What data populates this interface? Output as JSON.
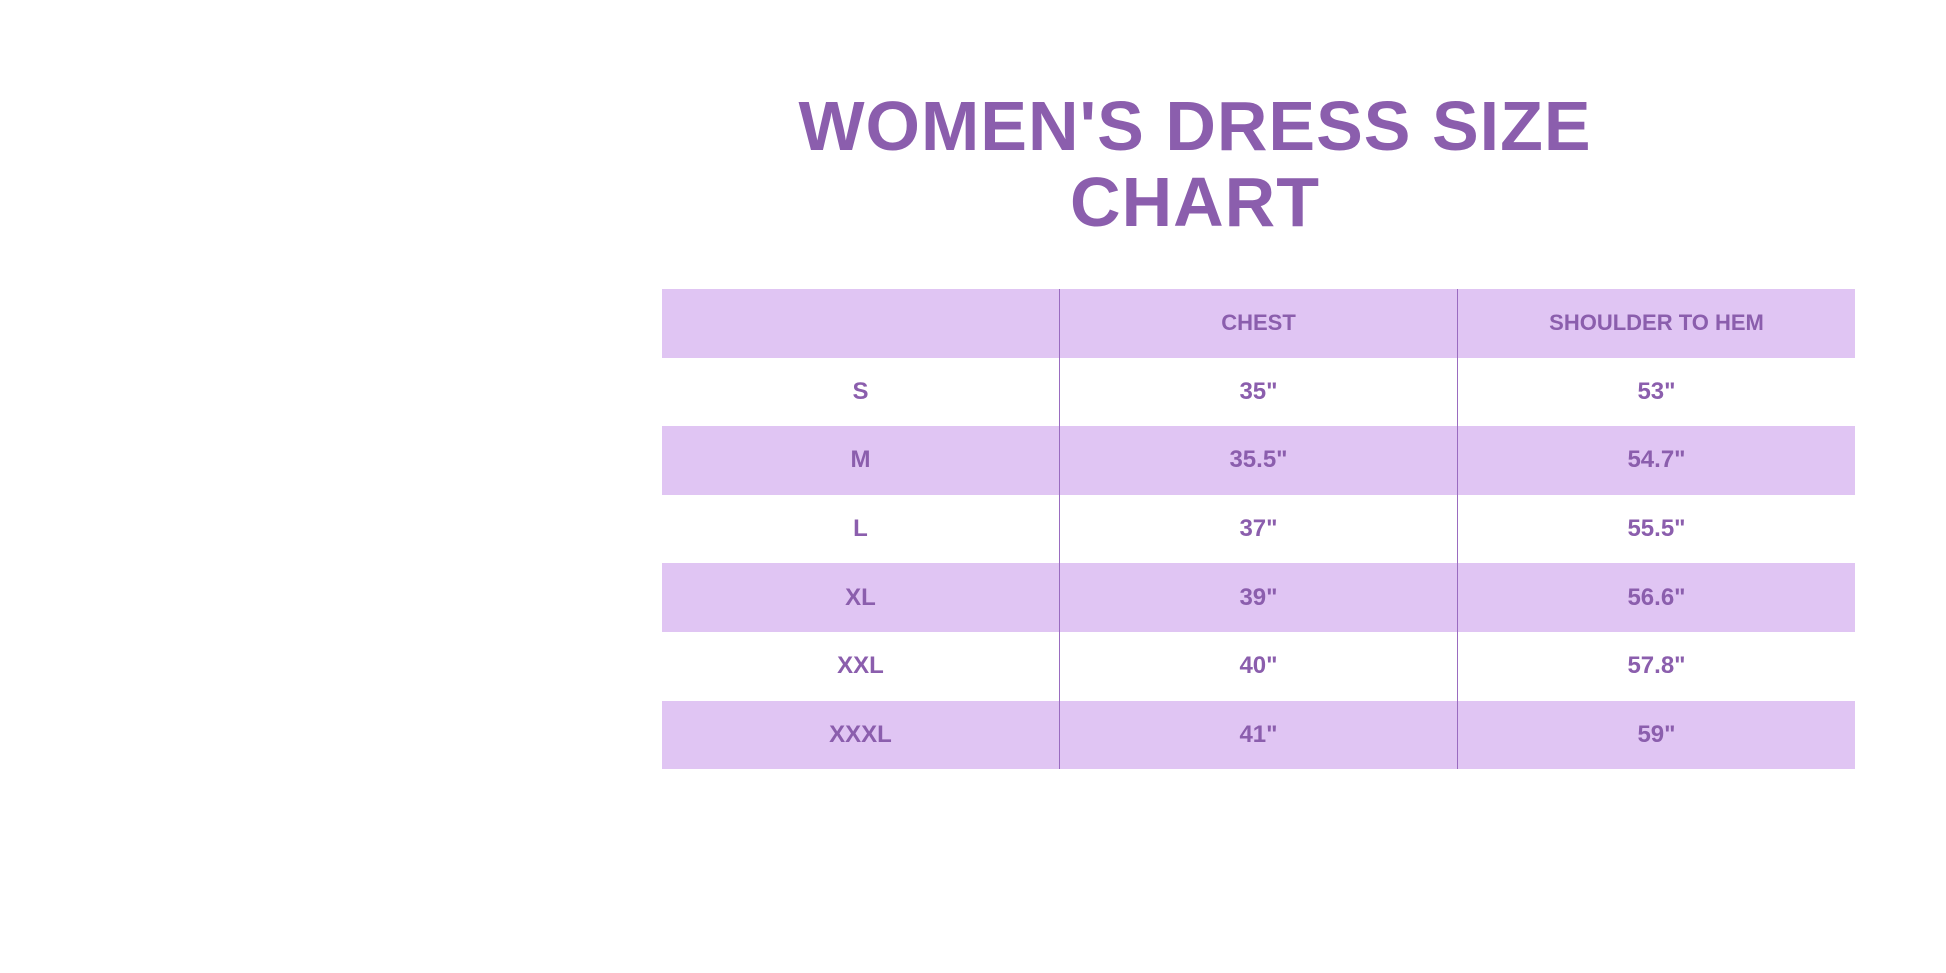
{
  "title": "WOMEN'S DRESS SIZE CHART",
  "colors": {
    "text": "#8b5ead",
    "shade": "#e0c5f3"
  },
  "table": {
    "headers": [
      "",
      "CHEST",
      "SHOULDER TO HEM"
    ],
    "rows": [
      [
        "S",
        "35\"",
        "53\""
      ],
      [
        "M",
        "35.5\"",
        "54.7\""
      ],
      [
        "L",
        "37\"",
        "55.5\""
      ],
      [
        "XL",
        "39\"",
        "56.6\""
      ],
      [
        "XXL",
        "40\"",
        "57.8\""
      ],
      [
        "XXXL",
        "41\"",
        "59\""
      ]
    ]
  }
}
